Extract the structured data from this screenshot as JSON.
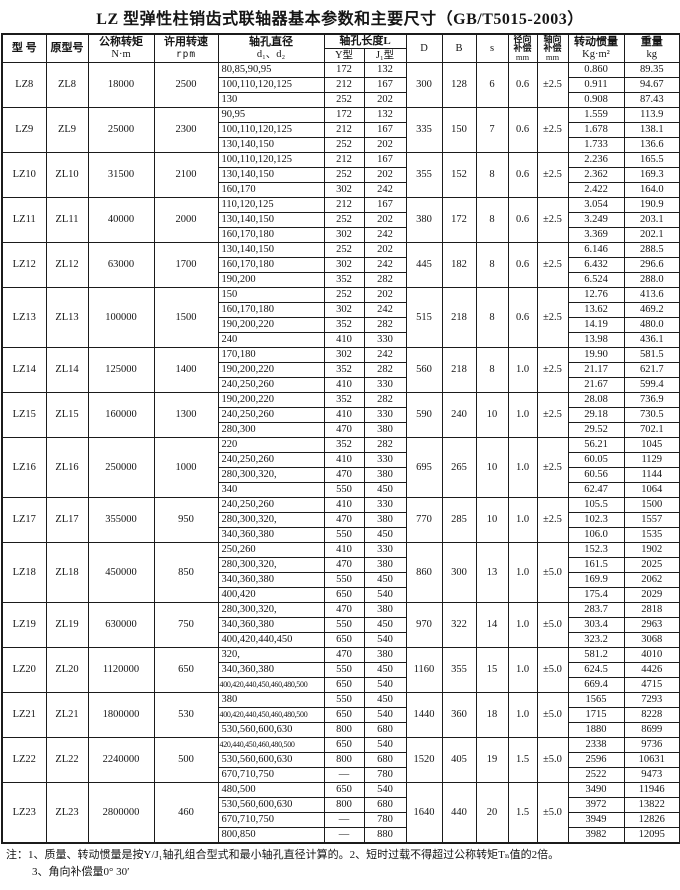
{
  "title": "LZ 型弹性柱销齿式联轴器基本参数和主要尺寸（GB/T5015-2003）",
  "table": {
    "headers": {
      "model": "型 号",
      "orig_model": "原型号",
      "torque_l1": "公称转矩",
      "torque_l2": "N·m",
      "speed_l1": "许用转速",
      "speed_l2": "rpm",
      "bore_l1": "轴孔直径",
      "bore_l2": "d₁、d₂",
      "length_group": "轴孔长度L",
      "y_type": "Y型",
      "j_type": "J₁型",
      "D": "D",
      "B": "B",
      "s": "s",
      "radial_l1": "径向",
      "radial_l2": "补偿",
      "radial_l3": "mm",
      "axial_l1": "轴向",
      "axial_l2": "补偿",
      "axial_l3": "mm",
      "inertia_l1": "转动惯量",
      "inertia_l2": "Kg·m²",
      "weight_l1": "重量",
      "weight_l2": "kg"
    },
    "groups": [
      {
        "model": "LZ8",
        "orig": "ZL8",
        "torque": "18000",
        "speed": "2500",
        "D": "300",
        "B": "128",
        "s": "6",
        "radial": "0.6",
        "axial": "±2.5",
        "rows": [
          [
            "80,85,90,95",
            "172",
            "132",
            "0.860",
            "89.35"
          ],
          [
            "100,110,120,125",
            "212",
            "167",
            "0.911",
            "94.67"
          ],
          [
            "130",
            "252",
            "202",
            "0.908",
            "87.43"
          ]
        ]
      },
      {
        "model": "LZ9",
        "orig": "ZL9",
        "torque": "25000",
        "speed": "2300",
        "D": "335",
        "B": "150",
        "s": "7",
        "radial": "0.6",
        "axial": "±2.5",
        "rows": [
          [
            "90,95",
            "172",
            "132",
            "1.559",
            "113.9"
          ],
          [
            "100,110,120,125",
            "212",
            "167",
            "1.678",
            "138.1"
          ],
          [
            "130,140,150",
            "252",
            "202",
            "1.733",
            "136.6"
          ]
        ]
      },
      {
        "model": "LZ10",
        "orig": "ZL10",
        "torque": "31500",
        "speed": "2100",
        "D": "355",
        "B": "152",
        "s": "8",
        "radial": "0.6",
        "axial": "±2.5",
        "rows": [
          [
            "100,110,120,125",
            "212",
            "167",
            "2.236",
            "165.5"
          ],
          [
            "130,140,150",
            "252",
            "202",
            "2.362",
            "169.3"
          ],
          [
            "160,170",
            "302",
            "242",
            "2.422",
            "164.0"
          ]
        ]
      },
      {
        "model": "LZ11",
        "orig": "ZL11",
        "torque": "40000",
        "speed": "2000",
        "D": "380",
        "B": "172",
        "s": "8",
        "radial": "0.6",
        "axial": "±2.5",
        "rows": [
          [
            "110,120,125",
            "212",
            "167",
            "3.054",
            "190.9"
          ],
          [
            "130,140,150",
            "252",
            "202",
            "3.249",
            "203.1"
          ],
          [
            "160,170,180",
            "302",
            "242",
            "3.369",
            "202.1"
          ]
        ]
      },
      {
        "model": "LZ12",
        "orig": "ZL12",
        "torque": "63000",
        "speed": "1700",
        "D": "445",
        "B": "182",
        "s": "8",
        "radial": "0.6",
        "axial": "±2.5",
        "rows": [
          [
            "130,140,150",
            "252",
            "202",
            "6.146",
            "288.5"
          ],
          [
            "160,170,180",
            "302",
            "242",
            "6.432",
            "296.6"
          ],
          [
            "190,200",
            "352",
            "282",
            "6.524",
            "288.0"
          ]
        ]
      },
      {
        "model": "LZ13",
        "orig": "ZL13",
        "torque": "100000",
        "speed": "1500",
        "D": "515",
        "B": "218",
        "s": "8",
        "radial": "0.6",
        "axial": "±2.5",
        "rows": [
          [
            "150",
            "252",
            "202",
            "12.76",
            "413.6"
          ],
          [
            "160,170,180",
            "302",
            "242",
            "13.62",
            "469.2"
          ],
          [
            "190,200,220",
            "352",
            "282",
            "14.19",
            "480.0"
          ],
          [
            "240",
            "410",
            "330",
            "13.98",
            "436.1"
          ]
        ]
      },
      {
        "model": "LZ14",
        "orig": "ZL14",
        "torque": "125000",
        "speed": "1400",
        "D": "560",
        "B": "218",
        "s": "8",
        "radial": "1.0",
        "axial": "±2.5",
        "rows": [
          [
            "170,180",
            "302",
            "242",
            "19.90",
            "581.5"
          ],
          [
            "190,200,220",
            "352",
            "282",
            "21.17",
            "621.7"
          ],
          [
            "240,250,260",
            "410",
            "330",
            "21.67",
            "599.4"
          ]
        ]
      },
      {
        "model": "LZ15",
        "orig": "ZL15",
        "torque": "160000",
        "speed": "1300",
        "D": "590",
        "B": "240",
        "s": "10",
        "radial": "1.0",
        "axial": "±2.5",
        "rows": [
          [
            "190,200,220",
            "352",
            "282",
            "28.08",
            "736.9"
          ],
          [
            "240,250,260",
            "410",
            "330",
            "29.18",
            "730.5"
          ],
          [
            "280,300",
            "470",
            "380",
            "29.52",
            "702.1"
          ]
        ]
      },
      {
        "model": "LZ16",
        "orig": "ZL16",
        "torque": "250000",
        "speed": "1000",
        "D": "695",
        "B": "265",
        "s": "10",
        "radial": "1.0",
        "axial": "±2.5",
        "rows": [
          [
            "220",
            "352",
            "282",
            "56.21",
            "1045"
          ],
          [
            "240,250,260",
            "410",
            "330",
            "60.05",
            "1129"
          ],
          [
            "280,300,320,",
            "470",
            "380",
            "60.56",
            "1144"
          ],
          [
            "340",
            "550",
            "450",
            "62.47",
            "1064"
          ]
        ]
      },
      {
        "model": "LZ17",
        "orig": "ZL17",
        "torque": "355000",
        "speed": "950",
        "D": "770",
        "B": "285",
        "s": "10",
        "radial": "1.0",
        "axial": "±2.5",
        "rows": [
          [
            "240,250,260",
            "410",
            "330",
            "105.5",
            "1500"
          ],
          [
            "280,300,320,",
            "470",
            "380",
            "102.3",
            "1557"
          ],
          [
            "340,360,380",
            "550",
            "450",
            "106.0",
            "1535"
          ]
        ]
      },
      {
        "model": "LZ18",
        "orig": "ZL18",
        "torque": "450000",
        "speed": "850",
        "D": "860",
        "B": "300",
        "s": "13",
        "radial": "1.0",
        "axial": "±5.0",
        "rows": [
          [
            "250,260",
            "410",
            "330",
            "152.3",
            "1902"
          ],
          [
            "280,300,320,",
            "470",
            "380",
            "161.5",
            "2025"
          ],
          [
            "340,360,380",
            "550",
            "450",
            "169.9",
            "2062"
          ],
          [
            "400,420",
            "650",
            "540",
            "175.4",
            "2029"
          ]
        ]
      },
      {
        "model": "LZ19",
        "orig": "ZL19",
        "torque": "630000",
        "speed": "750",
        "D": "970",
        "B": "322",
        "s": "14",
        "radial": "1.0",
        "axial": "±5.0",
        "rows": [
          [
            "280,300,320,",
            "470",
            "380",
            "283.7",
            "2818"
          ],
          [
            "340,360,380",
            "550",
            "450",
            "303.4",
            "2963"
          ],
          [
            "400,420,440,450",
            "650",
            "540",
            "323.2",
            "3068"
          ]
        ]
      },
      {
        "model": "LZ20",
        "orig": "ZL20",
        "torque": "1120000",
        "speed": "650",
        "D": "1160",
        "B": "355",
        "s": "15",
        "radial": "1.0",
        "axial": "±5.0",
        "rows": [
          [
            "320,",
            "470",
            "380",
            "581.2",
            "4010"
          ],
          [
            "340,360,380",
            "550",
            "450",
            "624.5",
            "4426"
          ],
          [
            "400,420,440,450,460,480,500",
            "650",
            "540",
            "669.4",
            "4715"
          ]
        ]
      },
      {
        "model": "LZ21",
        "orig": "ZL21",
        "torque": "1800000",
        "speed": "530",
        "D": "1440",
        "B": "360",
        "s": "18",
        "radial": "1.0",
        "axial": "±5.0",
        "rows": [
          [
            "380",
            "550",
            "450",
            "1565",
            "7293"
          ],
          [
            "400,420,440,450,460,480,500",
            "650",
            "540",
            "1715",
            "8228"
          ],
          [
            "530,560,600,630",
            "800",
            "680",
            "1880",
            "8699"
          ]
        ]
      },
      {
        "model": "LZ22",
        "orig": "ZL22",
        "torque": "2240000",
        "speed": "500",
        "D": "1520",
        "B": "405",
        "s": "19",
        "radial": "1.5",
        "axial": "±5.0",
        "rows": [
          [
            "420,440,450,460,480,500",
            "650",
            "540",
            "2338",
            "9736"
          ],
          [
            "530,560,600,630",
            "800",
            "680",
            "2596",
            "10631"
          ],
          [
            "670,710,750",
            "—",
            "780",
            "2522",
            "9473"
          ]
        ]
      },
      {
        "model": "LZ23",
        "orig": "ZL23",
        "torque": "2800000",
        "speed": "460",
        "D": "1640",
        "B": "440",
        "s": "20",
        "radial": "1.5",
        "axial": "±5.0",
        "rows": [
          [
            "480,500",
            "650",
            "540",
            "3490",
            "11946"
          ],
          [
            "530,560,600,630",
            "800",
            "680",
            "3972",
            "13822"
          ],
          [
            "670,710,750",
            "—",
            "780",
            "3949",
            "12826"
          ],
          [
            "800,850",
            "—",
            "880",
            "3982",
            "12095"
          ]
        ]
      }
    ]
  },
  "notes": {
    "line1": "注：1、质量、转动惯量是按Y/J₁轴孔组合型式和最小轴孔直径计算的。2、短时过载不得超过公称转矩Tₙ值的2倍。",
    "line2": "3、角向补偿量0° 30′"
  }
}
